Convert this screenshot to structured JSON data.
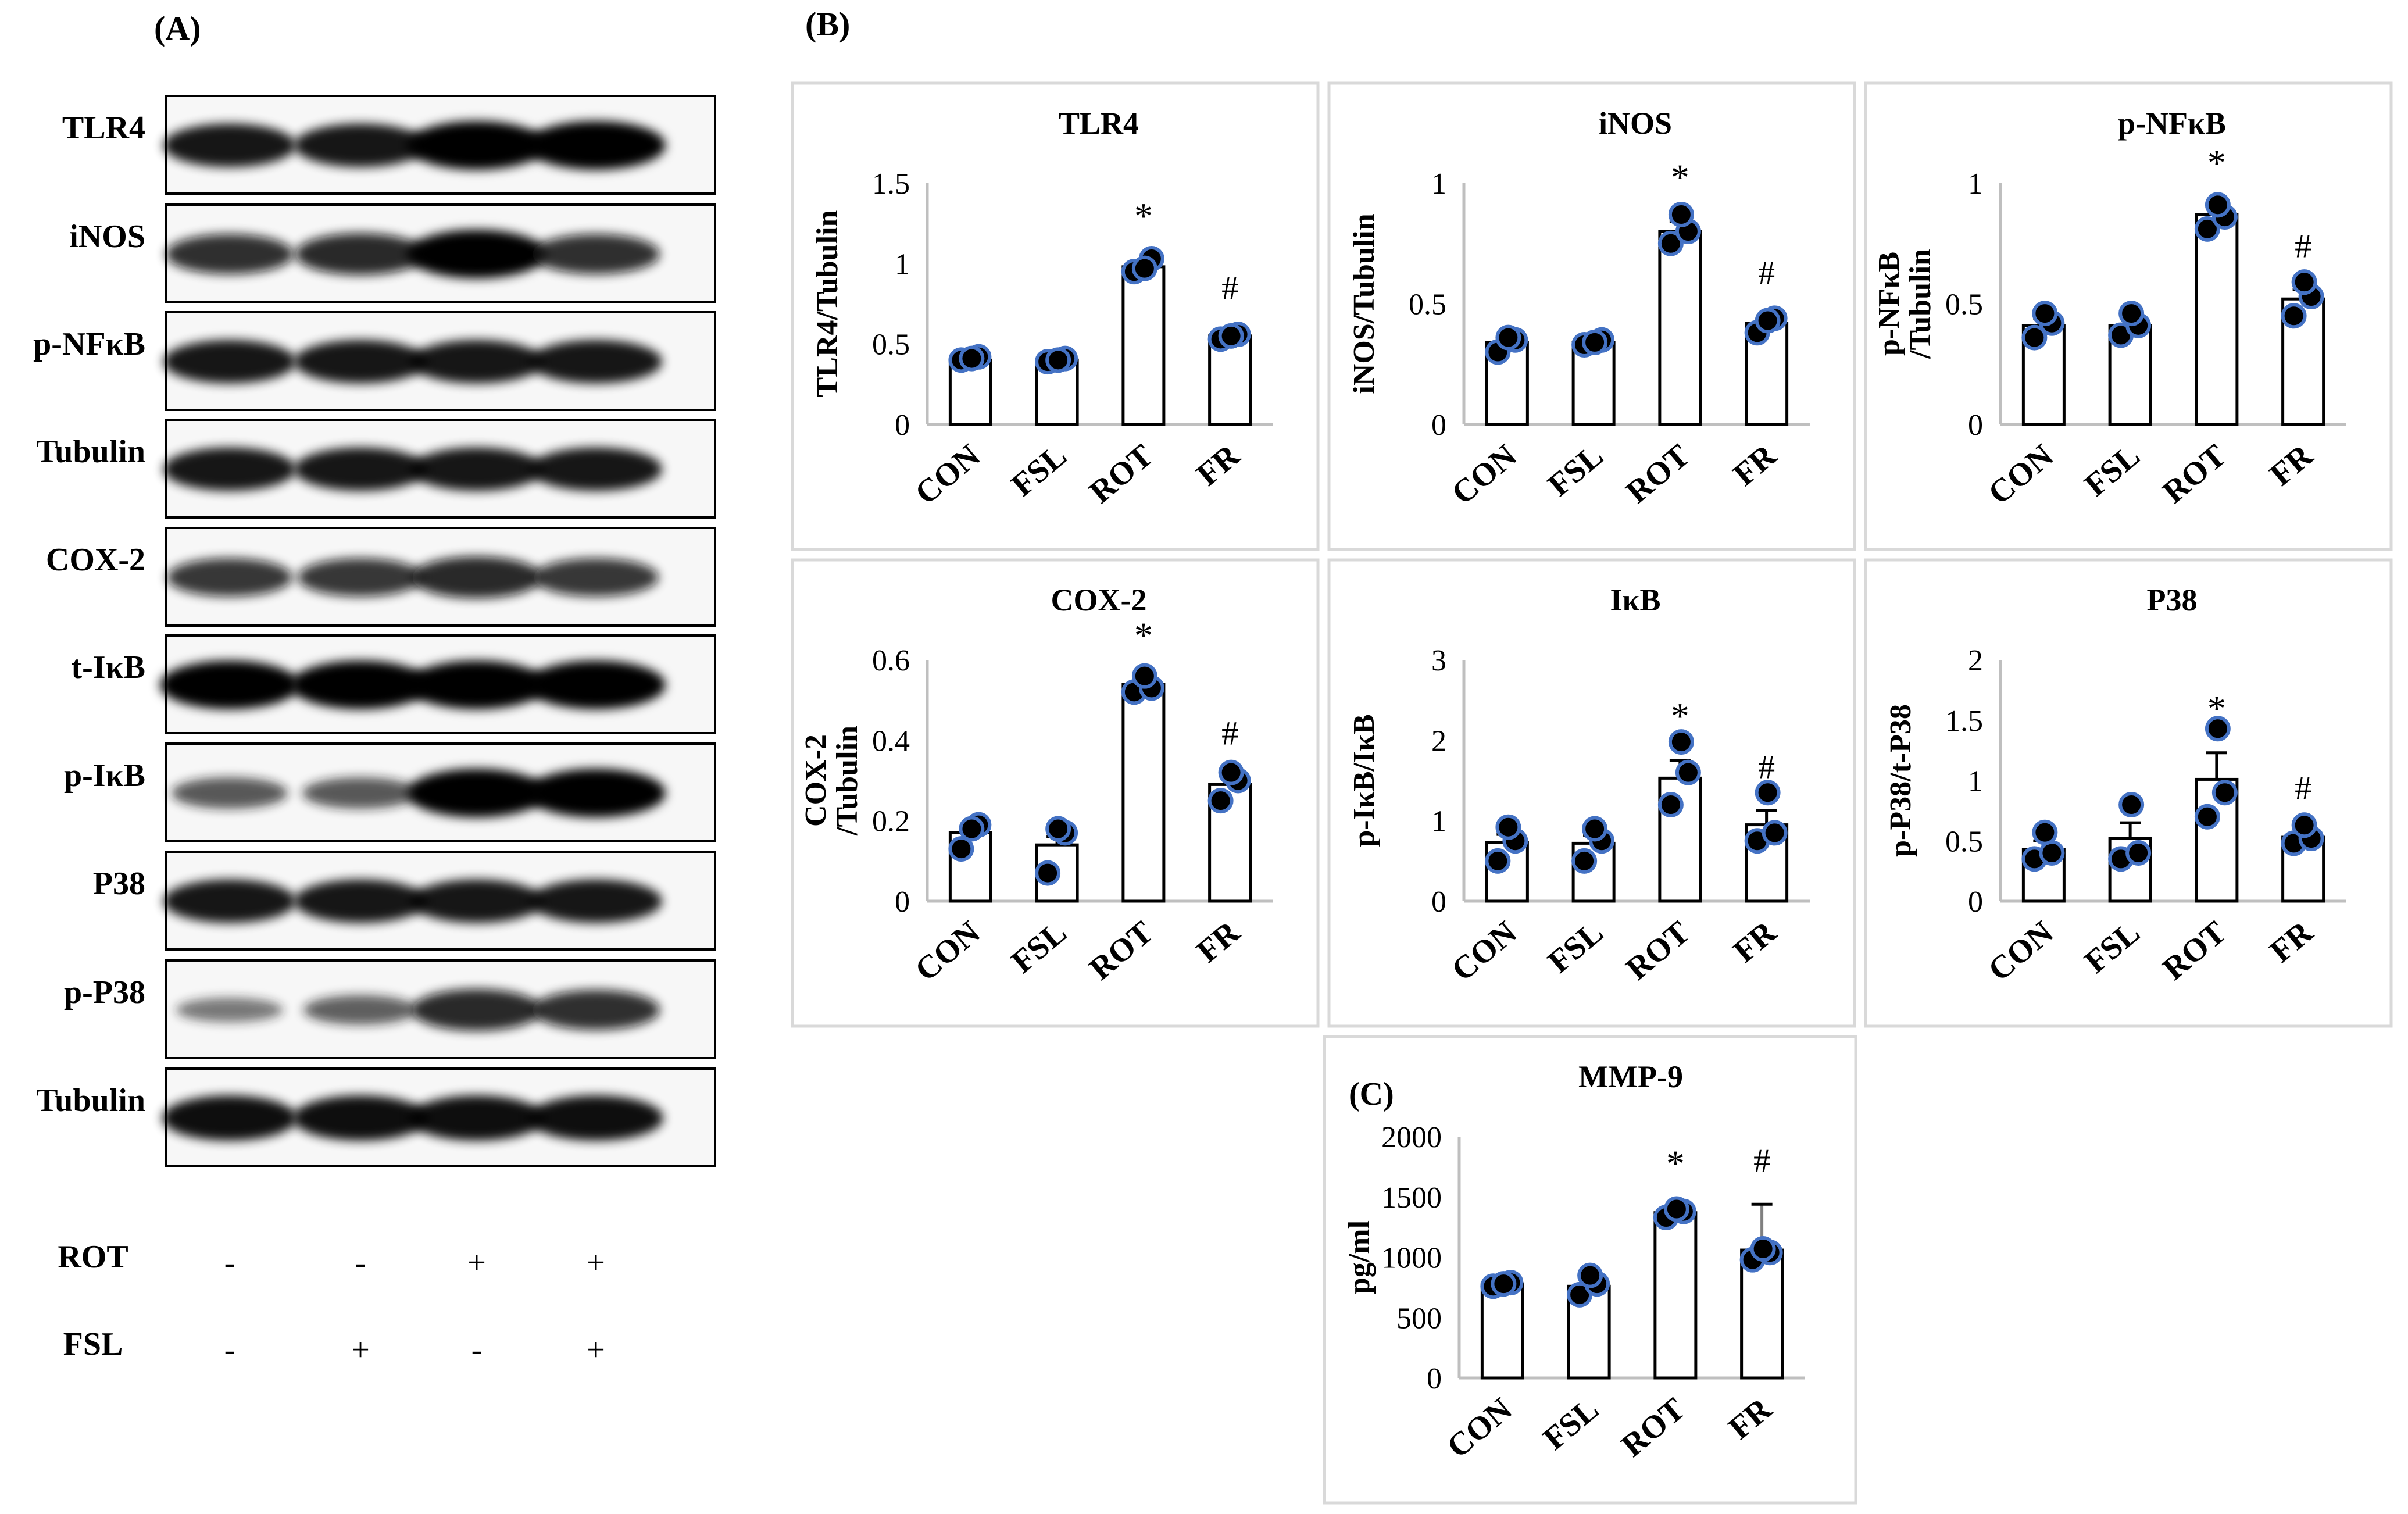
{
  "panel_a": {
    "label": "(A)",
    "bands": [
      {
        "name": "TLR4",
        "intensity": [
          0.85,
          0.85,
          1.0,
          1.0
        ]
      },
      {
        "name": "iNOS",
        "intensity": [
          0.75,
          0.8,
          1.0,
          0.75
        ]
      },
      {
        "name": "p-NFκB",
        "intensity": [
          0.85,
          0.85,
          0.85,
          0.85
        ]
      },
      {
        "name": "Tubulin",
        "intensity": [
          0.85,
          0.85,
          0.85,
          0.85
        ]
      },
      {
        "name": "COX-2",
        "intensity": [
          0.7,
          0.7,
          0.8,
          0.7
        ]
      },
      {
        "name": "t-IκB",
        "intensity": [
          1.0,
          1.0,
          1.0,
          1.0
        ]
      },
      {
        "name": "p-IκB",
        "intensity": [
          0.5,
          0.5,
          1.0,
          1.0
        ]
      },
      {
        "name": "P38",
        "intensity": [
          0.85,
          0.85,
          0.85,
          0.85
        ]
      },
      {
        "name": "p-P38",
        "intensity": [
          0.3,
          0.45,
          0.8,
          0.75
        ]
      },
      {
        "name": "Tubulin",
        "intensity": [
          0.9,
          0.9,
          0.9,
          0.9
        ]
      }
    ],
    "treatments": [
      {
        "name": "ROT",
        "values": [
          "-",
          "-",
          "+",
          "+"
        ]
      },
      {
        "name": "FSL",
        "values": [
          "-",
          "+",
          "-",
          "+"
        ]
      }
    ]
  },
  "panel_b_label": "(B)",
  "panel_c_label": "(C)",
  "chart_data": [
    {
      "type": "bar",
      "title": "TLR4",
      "ylabel": "TLR4/Tubulin",
      "ylim": [
        0,
        1.5
      ],
      "yticks": [
        "0",
        "0.5",
        "1",
        "1.5"
      ],
      "categories": [
        "CON",
        "FSL",
        "ROT",
        "FR"
      ],
      "values": [
        0.4,
        0.4,
        0.98,
        0.55
      ],
      "errors": [
        0.02,
        0.02,
        0.04,
        0.03
      ],
      "points": [
        [
          0.4,
          0.42,
          0.41
        ],
        [
          0.39,
          0.41,
          0.4
        ],
        [
          0.95,
          1.03,
          0.97
        ],
        [
          0.53,
          0.56,
          0.55
        ]
      ],
      "annotations": [
        "",
        "",
        "*",
        "#"
      ]
    },
    {
      "type": "bar",
      "title": "iNOS",
      "ylabel": "iNOS/Tubulin",
      "ylim": [
        0,
        1
      ],
      "yticks": [
        "0",
        "0.5",
        "1"
      ],
      "categories": [
        "CON",
        "FSL",
        "ROT",
        "FR"
      ],
      "values": [
        0.34,
        0.34,
        0.8,
        0.42
      ],
      "errors": [
        0.03,
        0.02,
        0.04,
        0.03
      ],
      "points": [
        [
          0.3,
          0.35,
          0.36
        ],
        [
          0.33,
          0.35,
          0.34
        ],
        [
          0.75,
          0.8,
          0.87
        ],
        [
          0.38,
          0.44,
          0.43
        ]
      ],
      "annotations": [
        "",
        "",
        "*",
        "#"
      ]
    },
    {
      "type": "bar",
      "title": "p-NFκB",
      "ylabel": "p-NFκB\n/Tubulin",
      "ylim": [
        0,
        1
      ],
      "yticks": [
        "0",
        "0.5",
        "1"
      ],
      "categories": [
        "CON",
        "FSL",
        "ROT",
        "FR"
      ],
      "values": [
        0.41,
        0.41,
        0.87,
        0.52
      ],
      "errors": [
        0.03,
        0.03,
        0.03,
        0.04
      ],
      "points": [
        [
          0.36,
          0.42,
          0.46
        ],
        [
          0.37,
          0.41,
          0.46
        ],
        [
          0.81,
          0.86,
          0.91
        ],
        [
          0.45,
          0.53,
          0.59
        ]
      ],
      "annotations": [
        "",
        "",
        "*",
        "#"
      ]
    },
    {
      "type": "bar",
      "title": "COX-2",
      "ylabel": "COX-2\n/Tubulin",
      "ylim": [
        0,
        0.6
      ],
      "yticks": [
        "0",
        "0.2",
        "0.4",
        "0.6"
      ],
      "categories": [
        "CON",
        "FSL",
        "ROT",
        "FR"
      ],
      "values": [
        0.17,
        0.14,
        0.54,
        0.29
      ],
      "errors": [
        0.02,
        0.02,
        0.01,
        0.02
      ],
      "points": [
        [
          0.13,
          0.19,
          0.18
        ],
        [
          0.07,
          0.17,
          0.18
        ],
        [
          0.52,
          0.53,
          0.56
        ],
        [
          0.25,
          0.3,
          0.32
        ]
      ],
      "annotations": [
        "",
        "",
        "*",
        "#"
      ]
    },
    {
      "type": "bar",
      "title": "IκB",
      "ylabel": "p-IκB/IκB",
      "ylim": [
        0,
        3
      ],
      "yticks": [
        "0",
        "1",
        "2",
        "3"
      ],
      "categories": [
        "CON",
        "FSL",
        "ROT",
        "FR"
      ],
      "values": [
        0.73,
        0.72,
        1.53,
        0.95
      ],
      "errors": [
        0.1,
        0.1,
        0.22,
        0.18
      ],
      "points": [
        [
          0.5,
          0.75,
          0.92
        ],
        [
          0.5,
          0.75,
          0.9
        ],
        [
          1.2,
          1.6,
          1.98
        ],
        [
          0.75,
          0.85,
          1.35
        ]
      ],
      "annotations": [
        "",
        "",
        "*",
        "#"
      ]
    },
    {
      "type": "bar",
      "title": "P38",
      "ylabel": "p-P38/t-P38",
      "ylim": [
        0,
        2
      ],
      "yticks": [
        "0",
        "0.5",
        "1",
        "1.5",
        "2"
      ],
      "categories": [
        "CON",
        "FSL",
        "ROT",
        "FR"
      ],
      "values": [
        0.43,
        0.52,
        1.01,
        0.53
      ],
      "errors": [
        0.07,
        0.13,
        0.22,
        0.05
      ],
      "points": [
        [
          0.35,
          0.4,
          0.57
        ],
        [
          0.35,
          0.4,
          0.8
        ],
        [
          0.7,
          0.9,
          1.43
        ],
        [
          0.48,
          0.52,
          0.63
        ]
      ],
      "annotations": [
        "",
        "",
        "*",
        "#"
      ]
    },
    {
      "type": "bar",
      "title": "MMP-9",
      "ylabel": "pg/ml",
      "ylim": [
        0,
        2000
      ],
      "yticks": [
        "0",
        "500",
        "1000",
        "1500",
        "2000"
      ],
      "categories": [
        "CON",
        "FSL",
        "ROT",
        "FR"
      ],
      "values": [
        780,
        760,
        1370,
        1060
      ],
      "errors": [
        30,
        70,
        40,
        380
      ],
      "points": [
        [
          760,
          790,
          780
        ],
        [
          690,
          780,
          850
        ],
        [
          1330,
          1380,
          1400
        ],
        [
          980,
          1040,
          1070
        ]
      ],
      "annotations": [
        "",
        "",
        "*",
        "#"
      ]
    }
  ],
  "colors": {
    "bar_fill": "#ffffff",
    "bar_stroke": "#000000",
    "point_fill": "#000000",
    "point_stroke": "#4472c4",
    "frame": "#d9d9d9",
    "axis": "#bfbfbf"
  }
}
